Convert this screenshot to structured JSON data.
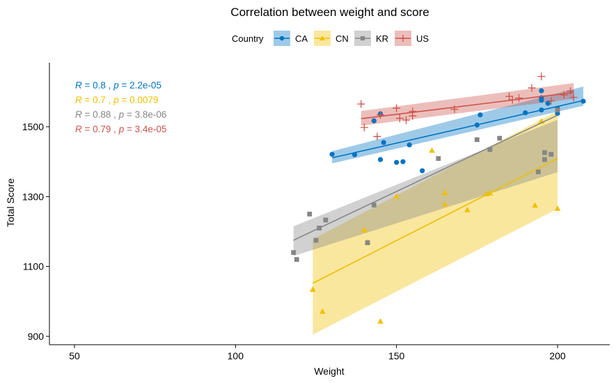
{
  "chart_data": {
    "type": "scatter",
    "title": "Correlation between weight and score",
    "xlabel": "Weight",
    "ylabel": "Total Score",
    "xlim": [
      42,
      214
    ],
    "ylim": [
      885,
      1690
    ],
    "xticks": [
      50,
      100,
      150,
      200
    ],
    "yticks": [
      900,
      1100,
      1300,
      1500
    ],
    "grid": false,
    "legend": {
      "title": "Country",
      "position": "top"
    },
    "series": [
      {
        "name": "CA",
        "color": "#0073C2",
        "marker": "circle",
        "points": [
          [
            130,
            1421
          ],
          [
            137,
            1420
          ],
          [
            143,
            1517
          ],
          [
            145,
            1537
          ],
          [
            146,
            1455
          ],
          [
            145,
            1406
          ],
          [
            150,
            1398
          ],
          [
            152,
            1400
          ],
          [
            154,
            1448
          ],
          [
            158,
            1374
          ],
          [
            175,
            1505
          ],
          [
            176,
            1534
          ],
          [
            190,
            1540
          ],
          [
            195,
            1548
          ],
          [
            195,
            1576
          ],
          [
            195,
            1583
          ],
          [
            195,
            1603
          ],
          [
            197,
            1567
          ],
          [
            200,
            1538
          ],
          [
            200,
            1553
          ],
          [
            208,
            1573
          ]
        ],
        "fit": {
          "x": [
            130,
            208
          ],
          "y": [
            1411,
            1575
          ]
        },
        "band": {
          "x": [
            130,
            208
          ],
          "lower": [
            1395,
            1560
          ],
          "upper": [
            1430,
            1615
          ]
        },
        "stat": {
          "R": "0.8",
          "p": "2.2e-05"
        }
      },
      {
        "name": "CN",
        "color": "#EFC000",
        "marker": "triangle",
        "points": [
          [
            124,
            1034
          ],
          [
            127,
            971
          ],
          [
            140,
            1204
          ],
          [
            141,
            1170
          ],
          [
            145,
            943
          ],
          [
            150,
            1301
          ],
          [
            161,
            1432
          ],
          [
            165,
            1311
          ],
          [
            165,
            1278
          ],
          [
            172,
            1262
          ],
          [
            178,
            1308
          ],
          [
            179,
            1310
          ],
          [
            193,
            1275
          ],
          [
            195,
            1516
          ],
          [
            200,
            1266
          ]
        ],
        "fit": {
          "x": [
            124,
            200
          ],
          "y": [
            1052,
            1409
          ]
        },
        "band": {
          "x": [
            124,
            200
          ],
          "lower": [
            905,
            1265
          ],
          "upper": [
            1178,
            1545
          ]
        },
        "stat": {
          "R": "0.7",
          "p": "0.0079"
        }
      },
      {
        "name": "KR",
        "color": "#868686",
        "marker": "square",
        "points": [
          [
            118,
            1140
          ],
          [
            119,
            1120
          ],
          [
            123,
            1250
          ],
          [
            125,
            1175
          ],
          [
            126,
            1210
          ],
          [
            128,
            1233
          ],
          [
            141,
            1168
          ],
          [
            143,
            1276
          ],
          [
            163,
            1409
          ],
          [
            175,
            1463
          ],
          [
            179,
            1435
          ],
          [
            182,
            1467
          ],
          [
            194,
            1371
          ],
          [
            196,
            1406
          ],
          [
            196,
            1426
          ],
          [
            198,
            1421
          ],
          [
            200,
            1548
          ]
        ],
        "fit": {
          "x": [
            118,
            200
          ],
          "y": [
            1175,
            1533
          ]
        },
        "band": {
          "x": [
            118,
            200
          ],
          "lower": [
            1130,
            1370
          ],
          "upper": [
            1215,
            1520
          ]
        },
        "stat": {
          "R": "0.88",
          "p": "3.8e-06"
        }
      },
      {
        "name": "US",
        "color": "#CD534C",
        "marker": "plus",
        "points": [
          [
            139,
            1565
          ],
          [
            140,
            1498
          ],
          [
            144,
            1472
          ],
          [
            145,
            1534
          ],
          [
            150,
            1553
          ],
          [
            151,
            1524
          ],
          [
            153,
            1519
          ],
          [
            155,
            1544
          ],
          [
            155,
            1531
          ],
          [
            168,
            1550
          ],
          [
            185,
            1587
          ],
          [
            186,
            1577
          ],
          [
            188,
            1582
          ],
          [
            192,
            1611
          ],
          [
            195,
            1644
          ],
          [
            198,
            1574
          ],
          [
            202,
            1591
          ],
          [
            204,
            1602
          ],
          [
            205,
            1584
          ]
        ],
        "fit": {
          "x": [
            139,
            205
          ],
          "y": [
            1523,
            1598
          ]
        },
        "band": {
          "x": [
            139,
            205
          ],
          "lower": [
            1503,
            1580
          ],
          "upper": [
            1545,
            1625
          ]
        },
        "stat": {
          "R": "0.79",
          "p": "3.4e-05"
        }
      }
    ]
  }
}
